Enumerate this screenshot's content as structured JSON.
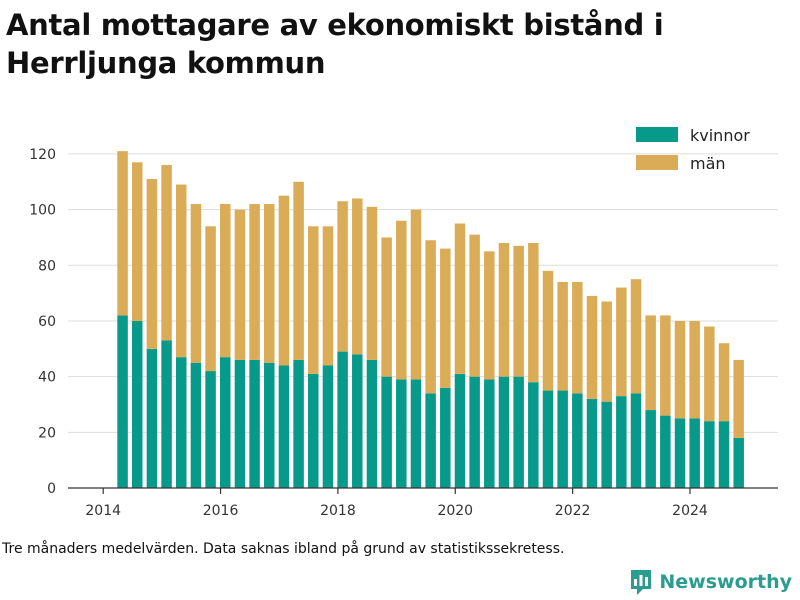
{
  "title": "Antal mottagare av ekonomiskt bistånd i Herrljunga kommun",
  "footnote": "Tre månaders medelvärden. Data saknas ibland på grund av statistikssekretess.",
  "brand": "Newsworthy",
  "colors": {
    "kvinnor": "#079a8b",
    "man": "#dbac57",
    "grid": "#dddddd",
    "axis": "#333333"
  },
  "chart_data": {
    "type": "bar",
    "stacked": true,
    "x_unit": "year",
    "xlim": [
      2013.4,
      2025.5
    ],
    "ylim": [
      0,
      125
    ],
    "xticks": [
      2014,
      2016,
      2018,
      2020,
      2022,
      2024
    ],
    "yticks": [
      0,
      20,
      40,
      60,
      80,
      100,
      120
    ],
    "grid": true,
    "legend_position": "top-right",
    "x": [
      2014.33,
      2014.58,
      2014.83,
      2015.08,
      2015.33,
      2015.58,
      2015.83,
      2016.08,
      2016.33,
      2016.58,
      2016.83,
      2017.08,
      2017.33,
      2017.58,
      2017.83,
      2018.08,
      2018.33,
      2018.58,
      2018.83,
      2019.08,
      2019.33,
      2019.58,
      2019.83,
      2020.08,
      2020.33,
      2020.58,
      2020.83,
      2021.08,
      2021.33,
      2021.58,
      2021.83,
      2022.08,
      2022.33,
      2022.58,
      2022.83,
      2023.08,
      2023.33,
      2023.58,
      2023.83,
      2024.08,
      2024.33,
      2024.58,
      2024.83
    ],
    "series": [
      {
        "name": "kvinnor",
        "values": [
          62,
          60,
          50,
          53,
          47,
          45,
          42,
          47,
          46,
          46,
          45,
          44,
          46,
          41,
          44,
          49,
          48,
          46,
          40,
          39,
          39,
          34,
          36,
          41,
          40,
          39,
          40,
          40,
          38,
          35,
          35,
          34,
          32,
          31,
          33,
          34,
          28,
          26,
          25,
          25,
          24,
          24,
          18
        ]
      },
      {
        "name": "män",
        "values": [
          59,
          57,
          61,
          63,
          62,
          57,
          52,
          55,
          54,
          56,
          57,
          61,
          64,
          53,
          50,
          54,
          56,
          55,
          50,
          57,
          61,
          55,
          50,
          54,
          51,
          46,
          48,
          47,
          50,
          43,
          39,
          40,
          37,
          36,
          39,
          41,
          34,
          36,
          35,
          35,
          34,
          28,
          28
        ]
      }
    ]
  }
}
